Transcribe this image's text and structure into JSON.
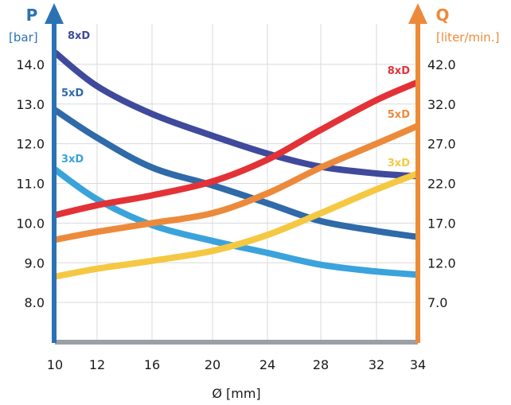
{
  "chart_data": {
    "type": "line",
    "title": "",
    "xlabel": "Ø [mm]",
    "x_ticks": [
      10,
      12,
      16,
      20,
      24,
      28,
      32,
      34
    ],
    "xlim": [
      10,
      34
    ],
    "left_axis": {
      "symbol": "P",
      "unit": "[bar]",
      "ticks": [
        "8.0",
        "9.0",
        "10.0",
        "11.0",
        "12.0",
        "13.0",
        "14.0"
      ],
      "ylim": [
        7.0,
        15.0
      ]
    },
    "right_axis": {
      "symbol": "Q",
      "unit": "[liter/min.]",
      "ticks": [
        "7.0",
        "12.0",
        "17.0",
        "22.0",
        "27.0",
        "32.0",
        "42.0"
      ]
    },
    "grid": true,
    "x": [
      10,
      12,
      16,
      20,
      24,
      28,
      32,
      34
    ],
    "series": [
      {
        "name": "8xD",
        "axis": "P",
        "label": "8xD",
        "color": "#3f4a9c",
        "values": [
          14.3,
          13.45,
          12.75,
          12.2,
          11.75,
          11.42,
          11.25,
          11.18
        ]
      },
      {
        "name": "5xD",
        "axis": "P",
        "label": "5xD",
        "color": "#2f6aa9",
        "values": [
          12.85,
          12.15,
          11.4,
          10.95,
          10.5,
          10.05,
          9.8,
          9.65
        ]
      },
      {
        "name": "3xD",
        "axis": "P",
        "label": "3xD",
        "color": "#3aa3dc",
        "values": [
          11.35,
          10.6,
          9.95,
          9.55,
          9.25,
          8.95,
          8.78,
          8.7
        ]
      },
      {
        "name": "8xD",
        "axis": "Q",
        "label": "8xD",
        "color": "#e33237",
        "values": [
          10.2,
          10.45,
          10.7,
          11.05,
          11.6,
          12.35,
          13.1,
          13.55
        ]
      },
      {
        "name": "5xD",
        "axis": "Q",
        "label": "5xD",
        "color": "#ec8a3b",
        "values": [
          9.58,
          9.78,
          10.0,
          10.25,
          10.75,
          11.4,
          12.0,
          12.45
        ]
      },
      {
        "name": "3xD",
        "axis": "Q",
        "label": "3xD",
        "color": "#f5c842",
        "values": [
          8.65,
          8.85,
          9.05,
          9.3,
          9.7,
          10.25,
          10.85,
          11.25
        ]
      }
    ],
    "colors": {
      "left_axis": "#2b72b5",
      "right_axis": "#ed8a3a",
      "x_axis": "#9aa0a6",
      "grid": "#d9dadd",
      "text": "#1a1a1a"
    }
  }
}
